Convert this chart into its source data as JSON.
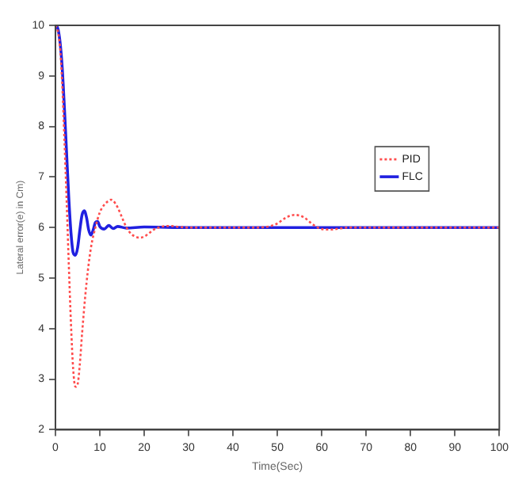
{
  "chart_data": {
    "type": "line",
    "xlabel": "Time(Sec)",
    "ylabel": "Lateral error(e) in Cm)",
    "xlim": [
      0,
      100
    ],
    "ylim": [
      2,
      10
    ],
    "xticks": [
      0,
      10,
      20,
      30,
      40,
      50,
      60,
      70,
      80,
      90,
      100
    ],
    "yticks": [
      2,
      3,
      4,
      5,
      6,
      7,
      8,
      9,
      10
    ],
    "grid": false,
    "legend": "right",
    "marker": "none",
    "series": [
      {
        "name": "PID",
        "color": "#ff4d4d",
        "line_style": "dotted",
        "x": [
          0,
          0.5,
          1,
          1.5,
          2,
          2.5,
          3,
          3.5,
          4,
          4.5,
          5,
          5.5,
          6,
          7,
          8,
          9,
          10,
          11,
          12,
          12.5,
          13,
          14,
          15,
          16,
          17,
          18,
          19,
          20,
          21,
          22,
          24,
          26,
          28,
          30,
          35,
          40,
          45,
          48,
          50,
          52,
          54,
          56,
          58,
          60,
          62,
          64,
          66,
          70,
          80,
          90,
          100
        ],
        "values": [
          10,
          9.9,
          9.6,
          8.9,
          7.8,
          6.6,
          5.3,
          4.1,
          3.2,
          2.85,
          2.9,
          3.3,
          3.9,
          4.9,
          5.6,
          6.0,
          6.3,
          6.45,
          6.53,
          6.55,
          6.53,
          6.4,
          6.2,
          6.0,
          5.88,
          5.82,
          5.8,
          5.82,
          5.88,
          5.95,
          6.02,
          6.03,
          6.01,
          6.0,
          6.0,
          6.0,
          6.0,
          6.02,
          6.08,
          6.2,
          6.25,
          6.2,
          6.06,
          5.97,
          5.96,
          5.98,
          6.0,
          6.0,
          6.0,
          6.0,
          6.0
        ]
      },
      {
        "name": "FLC",
        "color": "#2020e0",
        "line_style": "solid",
        "x": [
          0,
          0.5,
          1,
          1.5,
          2,
          2.5,
          3,
          3.5,
          4,
          4.5,
          5,
          5.5,
          6,
          6.5,
          7,
          7.5,
          8,
          8.5,
          9,
          9.5,
          10,
          11,
          12,
          13,
          14,
          16,
          20,
          30,
          50,
          70,
          100
        ],
        "values": [
          10,
          9.95,
          9.7,
          9.2,
          8.4,
          7.5,
          6.6,
          5.9,
          5.5,
          5.45,
          5.6,
          5.95,
          6.25,
          6.33,
          6.2,
          5.95,
          5.85,
          5.95,
          6.1,
          6.12,
          6.02,
          5.97,
          6.04,
          5.98,
          6.02,
          5.99,
          6.01,
          6.0,
          6.0,
          6.0,
          6.0
        ]
      }
    ]
  }
}
